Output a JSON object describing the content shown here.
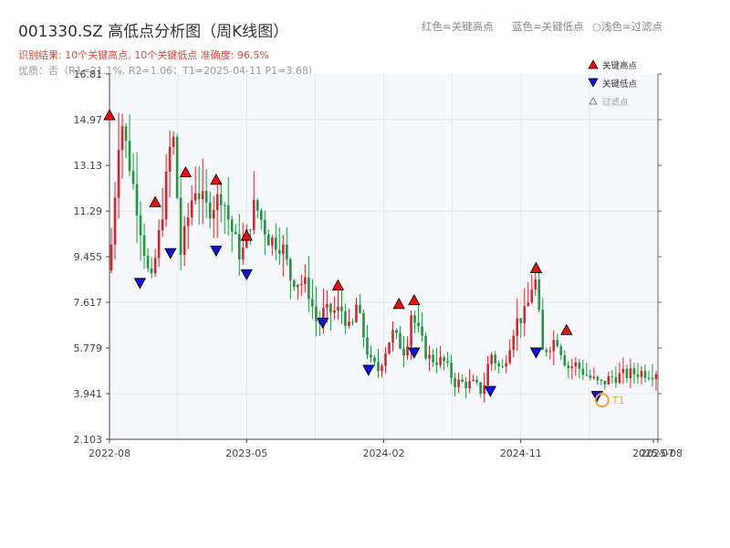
{
  "header": {
    "title": "001330.SZ 高低点分析图（周K线图）",
    "result": "识别结果: 10个关键高点, 10个关键低点   准确度: 96.5%",
    "quality": "优质：否（R1=21.1%, R2=1.06；T1=2025-04-11 P1=3.68）"
  },
  "top_legend": {
    "red": "红色=关键高点",
    "blue": "蓝色=关键低点",
    "light": "○浅色=过滤点"
  },
  "colors": {
    "up": "#e0202a",
    "down": "#1a9a3c",
    "high_marker": "#e81010",
    "low_marker": "#1010e0",
    "t1": "#f5a030",
    "plot_bg": "#f6f8fb",
    "grid": "#e3e6ec"
  },
  "chart_data": {
    "type": "candlestick",
    "ylim": [
      2.103,
      16.81
    ],
    "yticks": [
      16.81,
      14.97,
      13.13,
      11.29,
      9.455,
      7.617,
      5.779,
      3.941,
      2.103
    ],
    "xticks": [
      "2022-08",
      "2023-05",
      "2024-02",
      "2024-11",
      "2025-07",
      "2025-08"
    ],
    "time_range": [
      "2022-08",
      "2025-08"
    ],
    "legend": {
      "high": "关键高点",
      "low": "关键低点",
      "filtered": "过滤点"
    },
    "keypoint_path": [
      [
        0.0,
        8.9
      ],
      [
        0.8,
        15.2
      ],
      [
        2.0,
        11.5
      ],
      [
        3.0,
        8.2
      ],
      [
        3.8,
        11.0
      ],
      [
        4.6,
        14.7
      ],
      [
        5.2,
        9.6
      ],
      [
        6.2,
        12.3
      ],
      [
        7.2,
        11.3
      ],
      [
        8.2,
        12.0
      ],
      [
        8.8,
        10.7
      ],
      [
        9.6,
        9.4
      ],
      [
        10.6,
        11.6
      ],
      [
        11.6,
        10.2
      ],
      [
        12.6,
        9.9
      ],
      [
        13.2,
        8.6
      ],
      [
        14.4,
        8.3
      ],
      [
        15.2,
        6.6
      ],
      [
        15.6,
        7.2
      ],
      [
        17.0,
        7.3
      ],
      [
        17.6,
        6.3
      ],
      [
        18.0,
        7.5
      ],
      [
        19.0,
        5.2
      ],
      [
        19.6,
        4.9
      ],
      [
        20.6,
        6.4
      ],
      [
        21.6,
        5.6
      ],
      [
        22.0,
        7.2
      ],
      [
        23.2,
        5.4
      ],
      [
        24.4,
        5.2
      ],
      [
        25.2,
        4.4
      ],
      [
        26.6,
        4.3
      ],
      [
        27.2,
        4.0
      ],
      [
        27.8,
        5.6
      ],
      [
        28.6,
        4.8
      ],
      [
        29.6,
        6.8
      ],
      [
        30.4,
        7.2
      ],
      [
        31.0,
        8.8
      ],
      [
        31.6,
        5.6
      ],
      [
        32.6,
        6.2
      ],
      [
        33.4,
        5.0
      ],
      [
        34.0,
        5.1
      ],
      [
        35.0,
        4.6
      ],
      [
        35.8,
        4.3
      ],
      [
        36.6,
        4.6
      ],
      [
        37.6,
        4.7
      ],
      [
        38.6,
        4.8
      ],
      [
        39.6,
        4.8
      ],
      [
        40.0,
        4.9
      ]
    ],
    "highs": [
      {
        "date": "2022-08",
        "price": 15.15
      },
      {
        "date": "2022-11",
        "price": 11.65
      },
      {
        "date": "2023-01",
        "price": 12.85
      },
      {
        "date": "2023-03",
        "price": 12.55
      },
      {
        "date": "2023-05",
        "price": 10.3
      },
      {
        "date": "2023-11",
        "price": 8.3
      },
      {
        "date": "2024-03",
        "price": 7.55
      },
      {
        "date": "2024-04",
        "price": 7.7
      },
      {
        "date": "2024-12",
        "price": 9.0
      },
      {
        "date": "2025-02",
        "price": 6.5
      }
    ],
    "lows": [
      {
        "date": "2022-10",
        "price": 8.4
      },
      {
        "date": "2022-12",
        "price": 9.6
      },
      {
        "date": "2023-03",
        "price": 9.7
      },
      {
        "date": "2023-05",
        "price": 8.75
      },
      {
        "date": "2023-10",
        "price": 6.8
      },
      {
        "date": "2024-01",
        "price": 4.9
      },
      {
        "date": "2024-04",
        "price": 5.6
      },
      {
        "date": "2024-09",
        "price": 4.05
      },
      {
        "date": "2024-12",
        "price": 5.6
      },
      {
        "date": "2025-04",
        "price": 3.85
      }
    ],
    "t1": {
      "date": "2025-04-11",
      "price": 3.68,
      "label": "T1"
    }
  }
}
